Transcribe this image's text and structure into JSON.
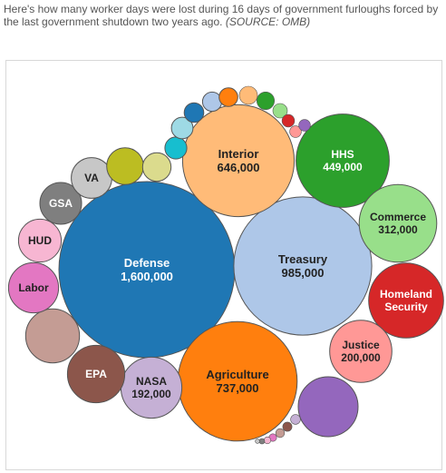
{
  "caption": {
    "text": "Here's how many worker days were lost during 16 days of government furloughs forced by the last government shutdown two years ago.",
    "source": "(SOURCE: OMB)"
  },
  "chart_data": {
    "type": "bubble",
    "title": "",
    "value_unit": "worker days",
    "bubbles": [
      {
        "name": "Defense",
        "value_label": "1,600,000",
        "value": 1600000,
        "color": "#1f77b4",
        "text_color": "#ffffff"
      },
      {
        "name": "Treasury",
        "value_label": "985,000",
        "value": 985000,
        "color": "#aec7e8",
        "text_color": "#222222"
      },
      {
        "name": "Agriculture",
        "value_label": "737,000",
        "value": 737000,
        "color": "#ff7f0e",
        "text_color": "#222222"
      },
      {
        "name": "Interior",
        "value_label": "646,000",
        "value": 646000,
        "color": "#ffbb78",
        "text_color": "#222222"
      },
      {
        "name": "HHS",
        "value_label": "449,000",
        "value": 449000,
        "color": "#2ca02c",
        "text_color": "#ffffff"
      },
      {
        "name": "Commerce",
        "value_label": "312,000",
        "value": 312000,
        "color": "#98df8a",
        "text_color": "#222222"
      },
      {
        "name": "Homeland Security",
        "value_label": "",
        "value": 290000,
        "color": "#d62728",
        "text_color": "#ffffff"
      },
      {
        "name": "Justice",
        "value_label": "200,000",
        "value": 200000,
        "color": "#ff9896",
        "text_color": "#222222"
      },
      {
        "name": "NASA",
        "value_label": "192,000",
        "value": 192000,
        "color": "#c5b0d5",
        "text_color": "#222222"
      },
      {
        "name": "EPA",
        "value_label": "",
        "value": 170000,
        "color": "#8c564b",
        "text_color": "#ffffff"
      },
      {
        "name": "",
        "value_label": "",
        "value": 185000,
        "color": "#9467bd",
        "text_color": "#ffffff"
      },
      {
        "name": "",
        "value_label": "",
        "value": 150000,
        "color": "#c49c94",
        "text_color": "#ffffff"
      },
      {
        "name": "Labor",
        "value_label": "",
        "value": 130000,
        "color": "#e377c2",
        "text_color": "#222222"
      },
      {
        "name": "HUD",
        "value_label": "",
        "value": 95000,
        "color": "#f7b6d2",
        "text_color": "#222222"
      },
      {
        "name": "GSA",
        "value_label": "",
        "value": 90000,
        "color": "#7f7f7f",
        "text_color": "#ffffff"
      },
      {
        "name": "VA",
        "value_label": "",
        "value": 85000,
        "color": "#c7c7c7",
        "text_color": "#222222"
      },
      {
        "name": "",
        "value_label": "",
        "value": 70000,
        "color": "#bcbd22",
        "text_color": "#ffffff"
      },
      {
        "name": "",
        "value_label": "",
        "value": 42000,
        "color": "#dbdb8d",
        "text_color": "#222222"
      },
      {
        "name": "",
        "value_label": "",
        "value": 25000,
        "color": "#17becf",
        "text_color": "#ffffff"
      },
      {
        "name": "",
        "value_label": "",
        "value": 24000,
        "color": "#9edae5",
        "text_color": "#222222"
      },
      {
        "name": "",
        "value_label": "",
        "value": 20000,
        "color": "#1f77b4",
        "text_color": "#ffffff"
      },
      {
        "name": "",
        "value_label": "",
        "value": 19000,
        "color": "#aec7e8",
        "text_color": "#222222"
      },
      {
        "name": "",
        "value_label": "",
        "value": 18000,
        "color": "#ff7f0e",
        "text_color": "#222222"
      },
      {
        "name": "",
        "value_label": "",
        "value": 17000,
        "color": "#ffbb78",
        "text_color": "#222222"
      },
      {
        "name": "",
        "value_label": "",
        "value": 16000,
        "color": "#2ca02c",
        "text_color": "#ffffff"
      },
      {
        "name": "",
        "value_label": "",
        "value": 11000,
        "color": "#98df8a",
        "text_color": "#222222"
      },
      {
        "name": "",
        "value_label": "",
        "value": 8000,
        "color": "#d62728",
        "text_color": "#ffffff"
      },
      {
        "name": "",
        "value_label": "",
        "value": 7000,
        "color": "#ff9896",
        "text_color": "#222222"
      },
      {
        "name": "",
        "value_label": "",
        "value": 7000,
        "color": "#9467bd",
        "text_color": "#ffffff"
      },
      {
        "name": "",
        "value_label": "",
        "value": 5000,
        "color": "#c5b0d5",
        "text_color": "#222222"
      },
      {
        "name": "",
        "value_label": "",
        "value": 4500,
        "color": "#8c564b",
        "text_color": "#ffffff"
      },
      {
        "name": "",
        "value_label": "",
        "value": 4000,
        "color": "#c49c94",
        "text_color": "#222222"
      },
      {
        "name": "",
        "value_label": "",
        "value": 3000,
        "color": "#e377c2",
        "text_color": "#222222"
      },
      {
        "name": "",
        "value_label": "",
        "value": 2500,
        "color": "#f7b6d2",
        "text_color": "#222222"
      },
      {
        "name": "",
        "value_label": "",
        "value": 1500,
        "color": "#7f7f7f",
        "text_color": "#ffffff"
      },
      {
        "name": "",
        "value_label": "",
        "value": 1000,
        "color": "#c7c7c7",
        "text_color": "#222222"
      }
    ]
  }
}
